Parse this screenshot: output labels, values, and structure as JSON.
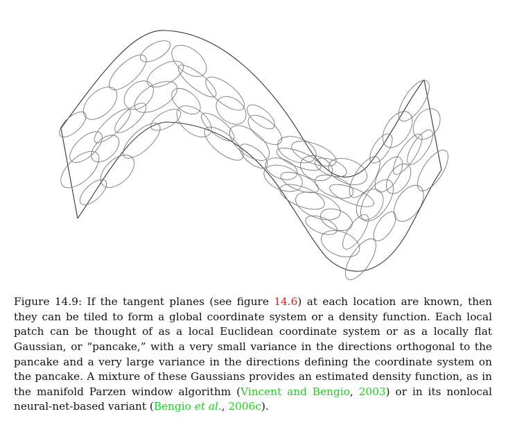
{
  "figure": {
    "type": "illustration",
    "subject": "manifold tiled by local Gaussian pancakes",
    "colors": {
      "stroke": "#333333",
      "ellipse": "#777777"
    }
  },
  "caption": {
    "label": "Figure 14.9:",
    "t1": " If the tangent planes (see figure ",
    "fig_ref": "14.6",
    "t2": ") at each location are known, then they can be tiled to form a global coordinate system or a density function. Each local patch can be thought of as a local Euclidean coordinate system or as a locally flat Gaussian, or “pancake,” with a very small variance in the directions orthogonal to the pancake and a very large variance in the directions defining the coordinate system on the pancake. A mixture of these Gaussians provides an estimated density function, as in the manifold Parzen window algorithm (",
    "cite1_authors": "Vincent and Bengio",
    "cite1_sep": ", ",
    "cite1_year": "2003",
    "t3": ") or in its nonlocal neural-net-based variant (",
    "cite2_authors": "Bengio ",
    "cite2_etal": "et al.",
    "cite2_sep": ", ",
    "cite2_year": "2006c",
    "t4": ")."
  },
  "colors": {
    "ref": "#e02020",
    "cite": "#16d416",
    "text": "#111111"
  }
}
